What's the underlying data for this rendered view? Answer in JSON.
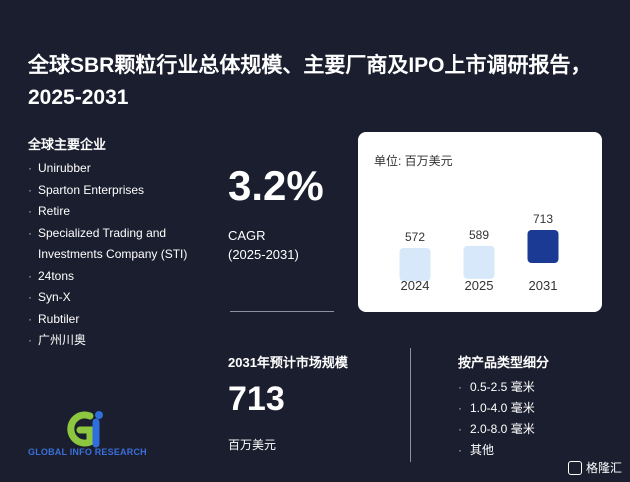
{
  "title": "全球SBR颗粒行业总体规模、主要厂商及IPO上市调研报告，2025-2031",
  "companies": {
    "heading": "全球主要企业",
    "items": [
      "Unirubber",
      "Sparton Enterprises",
      "Retire",
      "Specialized Trading and Investments Company (STI)",
      "24tons",
      "Syn-X",
      "Rubtiler",
      "广州川奥"
    ]
  },
  "cagr": {
    "value": "3.2%",
    "label": "CAGR\n(2025-2031)"
  },
  "chart_data": {
    "type": "bar",
    "unit_label": "单位: 百万美元",
    "categories": [
      "2024",
      "2025",
      "2031"
    ],
    "values": [
      572,
      589,
      713
    ],
    "colors": [
      "#d6e8fa",
      "#d6e8fa",
      "#1a3a94"
    ]
  },
  "market": {
    "heading": "2031年预计市场规模",
    "value": "713",
    "unit": "百万美元"
  },
  "segments": {
    "heading": "按产品类型细分",
    "items": [
      "0.5-2.5 毫米",
      "1.0-4.0 毫米",
      "2.0-8.0 毫米",
      "其他"
    ]
  },
  "brand": {
    "logo_text": "GLOBAL INFO RESEARCH",
    "logo_colors": [
      "#8dc63f",
      "#2f6fdc"
    ],
    "watermark": "格隆汇"
  }
}
